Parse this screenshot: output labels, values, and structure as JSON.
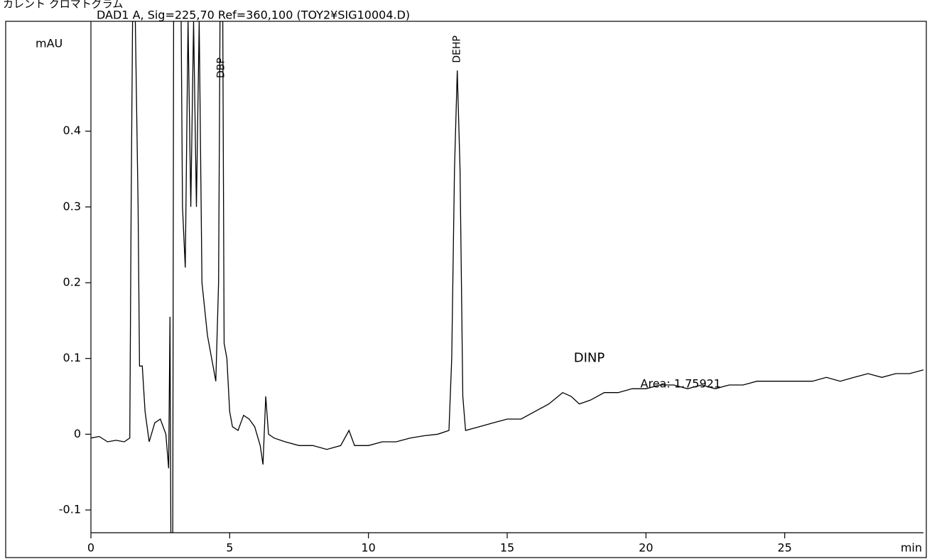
{
  "header": "カレント クロマトグラム",
  "chart_data": {
    "type": "line",
    "title": "DAD1 A, Sig=225,70 Ref=360,100 (TOY2¥SIG10004.D)",
    "y_label": "mAU",
    "x_label": "min",
    "peak_labels": [
      "DBP",
      "DEHP"
    ],
    "annotations": [
      "DINP",
      "Area: 1.75921"
    ],
    "xlim": [
      0,
      30
    ],
    "xticks": [
      0,
      5,
      10,
      15,
      20,
      25
    ],
    "ylim": [
      -0.13,
      0.545
    ],
    "yticks": [
      -0.1,
      0,
      0.1,
      0.2,
      0.3,
      0.4
    ],
    "series": [
      {
        "name": "DAD1 A",
        "color": "#000000",
        "x": [
          0,
          0.3,
          0.6,
          0.9,
          1.2,
          1.4,
          1.45,
          1.5,
          1.6,
          1.7,
          1.75,
          1.85,
          1.95,
          2.1,
          2.3,
          2.5,
          2.7,
          2.8,
          2.85,
          2.88,
          2.95,
          2.98,
          3.1,
          3.25,
          3.3,
          3.4,
          3.5,
          3.6,
          3.7,
          3.8,
          3.9,
          4.0,
          4.2,
          4.4,
          4.5,
          4.6,
          4.65,
          4.75,
          4.8,
          4.9,
          5.0,
          5.1,
          5.3,
          5.5,
          5.7,
          5.9,
          6.1,
          6.2,
          6.3,
          6.4,
          6.6,
          7,
          7.5,
          8,
          8.5,
          9,
          9.3,
          9.5,
          10,
          10.5,
          11,
          11.5,
          12,
          12.5,
          12.9,
          13.0,
          13.1,
          13.2,
          13.3,
          13.4,
          13.5,
          14,
          14.5,
          15,
          15.5,
          16,
          16.5,
          17,
          17.3,
          17.6,
          18,
          18.5,
          19,
          19.5,
          20,
          20.5,
          21,
          21.5,
          22,
          22.5,
          23,
          23.5,
          24,
          24.5,
          25,
          25.5,
          26,
          26.5,
          27,
          27.5,
          28,
          28.5,
          29,
          29.5,
          30
        ],
        "values": [
          -0.005,
          -0.003,
          -0.01,
          -0.008,
          -0.01,
          -0.005,
          0.3,
          0.545,
          0.545,
          0.3,
          0.09,
          0.09,
          0.03,
          -0.01,
          0.015,
          0.02,
          0.0,
          -0.045,
          0.155,
          -0.13,
          -0.13,
          0.545,
          null,
          0.545,
          0.3,
          0.22,
          0.545,
          0.3,
          0.545,
          0.3,
          0.545,
          0.2,
          0.13,
          0.09,
          0.07,
          0.2,
          0.545,
          0.545,
          0.12,
          0.1,
          0.03,
          0.01,
          0.005,
          0.025,
          0.02,
          0.01,
          -0.015,
          -0.04,
          0.05,
          0.0,
          -0.005,
          -0.01,
          -0.015,
          -0.015,
          -0.02,
          -0.015,
          0.005,
          -0.015,
          -0.015,
          -0.01,
          -0.01,
          -0.005,
          -0.002,
          0.0,
          0.005,
          0.1,
          0.35,
          0.48,
          0.35,
          0.05,
          0.005,
          0.01,
          0.015,
          0.02,
          0.02,
          0.03,
          0.04,
          0.055,
          0.05,
          0.04,
          0.045,
          0.055,
          0.055,
          0.06,
          0.06,
          0.065,
          0.065,
          0.06,
          0.065,
          0.06,
          0.065,
          0.065,
          0.07,
          0.07,
          0.07,
          0.07,
          0.07,
          0.075,
          0.07,
          0.075,
          0.08,
          0.075,
          0.08,
          0.08,
          0.085
        ]
      }
    ]
  }
}
